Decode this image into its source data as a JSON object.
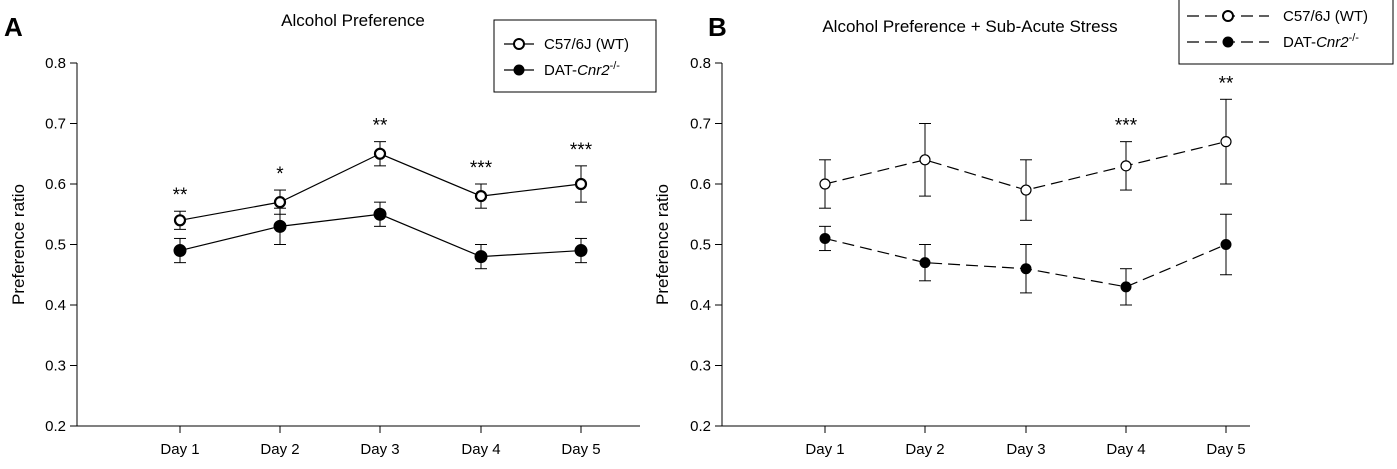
{
  "chart_data": [
    {
      "panel": "A",
      "type": "line",
      "title": "Alcohol Preference",
      "xlabel": "",
      "ylabel": "Preference ratio",
      "ylim": [
        0.2,
        0.8
      ],
      "yticks": [
        "0.2",
        "0.3",
        "0.4",
        "0.5",
        "0.6",
        "0.7",
        "0.8"
      ],
      "categories": [
        "Day 1",
        "Day 2",
        "Day 3",
        "Day 4",
        "Day 5"
      ],
      "line_style": "solid",
      "legend": {
        "placement": "top-right"
      },
      "series": [
        {
          "name": "C57/6J (WT)",
          "marker": "open-circle",
          "values": [
            0.54,
            0.57,
            0.65,
            0.58,
            0.6
          ],
          "errors": [
            0.015,
            0.02,
            0.02,
            0.02,
            0.03
          ]
        },
        {
          "name_prefix": "DAT-",
          "name_italic": "Cnr2",
          "name_sup": "-/-",
          "marker": "filled-circle",
          "values": [
            0.49,
            0.53,
            0.55,
            0.48,
            0.49
          ],
          "errors": [
            0.02,
            0.03,
            0.02,
            0.02,
            0.02
          ]
        }
      ],
      "significance": [
        "**",
        "*",
        "**",
        "***",
        "***"
      ]
    },
    {
      "panel": "B",
      "type": "line",
      "title": "Alcohol Preference + Sub-Acute Stress",
      "xlabel": "",
      "ylabel": "Preference ratio",
      "ylim": [
        0.2,
        0.8
      ],
      "yticks": [
        "0.2",
        "0.3",
        "0.4",
        "0.5",
        "0.6",
        "0.7",
        "0.8"
      ],
      "categories": [
        "Day 1",
        "Day 2",
        "Day 3",
        "Day 4",
        "Day 5"
      ],
      "line_style": "dashed",
      "legend": {
        "placement": "top-right"
      },
      "series": [
        {
          "name": "C57/6J (WT)",
          "marker": "open-circle",
          "values": [
            0.6,
            0.64,
            0.59,
            0.63,
            0.67
          ],
          "errors": [
            0.04,
            0.06,
            0.05,
            0.04,
            0.07
          ]
        },
        {
          "name_prefix": "DAT-",
          "name_italic": "Cnr2",
          "name_sup": "-/-",
          "marker": "filled-circle",
          "values": [
            0.51,
            0.47,
            0.46,
            0.43,
            0.5
          ],
          "errors": [
            0.02,
            0.03,
            0.04,
            0.03,
            0.05
          ]
        }
      ],
      "significance": [
        "",
        "",
        "",
        "***",
        "**"
      ]
    }
  ]
}
